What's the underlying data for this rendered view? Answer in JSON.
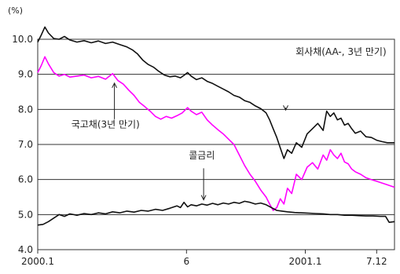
{
  "chart_data": {
    "type": "line",
    "y_unit": "(%)",
    "ylim": [
      4.0,
      10.0
    ],
    "y_ticks": [
      "4.0",
      "5.0",
      "6.0",
      "7.0",
      "8.0",
      "9.0",
      "10.0"
    ],
    "x_tick_labels": [
      "2000.1",
      "6",
      "2001.1",
      "7.12"
    ],
    "x_ticks": [
      0,
      0.417,
      0.75,
      0.95
    ],
    "grid": "horizontal",
    "series": [
      {
        "name": "회사채(AA-, 3년 만기)",
        "color": "#111111",
        "points": [
          [
            0.0,
            9.92
          ],
          [
            0.01,
            10.12
          ],
          [
            0.02,
            10.35
          ],
          [
            0.03,
            10.18
          ],
          [
            0.045,
            10.02
          ],
          [
            0.06,
            10.0
          ],
          [
            0.075,
            10.08
          ],
          [
            0.09,
            9.98
          ],
          [
            0.11,
            9.92
          ],
          [
            0.13,
            9.96
          ],
          [
            0.15,
            9.9
          ],
          [
            0.17,
            9.95
          ],
          [
            0.19,
            9.88
          ],
          [
            0.21,
            9.92
          ],
          [
            0.23,
            9.85
          ],
          [
            0.25,
            9.78
          ],
          [
            0.265,
            9.7
          ],
          [
            0.28,
            9.58
          ],
          [
            0.295,
            9.4
          ],
          [
            0.31,
            9.28
          ],
          [
            0.325,
            9.2
          ],
          [
            0.34,
            9.08
          ],
          [
            0.355,
            8.98
          ],
          [
            0.37,
            8.93
          ],
          [
            0.385,
            8.95
          ],
          [
            0.4,
            8.9
          ],
          [
            0.41,
            8.97
          ],
          [
            0.42,
            9.05
          ],
          [
            0.43,
            8.95
          ],
          [
            0.445,
            8.85
          ],
          [
            0.46,
            8.9
          ],
          [
            0.475,
            8.8
          ],
          [
            0.49,
            8.74
          ],
          [
            0.505,
            8.66
          ],
          [
            0.52,
            8.58
          ],
          [
            0.535,
            8.5
          ],
          [
            0.55,
            8.4
          ],
          [
            0.565,
            8.35
          ],
          [
            0.58,
            8.25
          ],
          [
            0.595,
            8.2
          ],
          [
            0.61,
            8.1
          ],
          [
            0.625,
            8.02
          ],
          [
            0.64,
            7.9
          ],
          [
            0.65,
            7.7
          ],
          [
            0.66,
            7.45
          ],
          [
            0.67,
            7.2
          ],
          [
            0.68,
            6.9
          ],
          [
            0.69,
            6.6
          ],
          [
            0.7,
            6.85
          ],
          [
            0.712,
            6.75
          ],
          [
            0.725,
            7.05
          ],
          [
            0.74,
            6.92
          ],
          [
            0.755,
            7.3
          ],
          [
            0.77,
            7.45
          ],
          [
            0.785,
            7.6
          ],
          [
            0.8,
            7.4
          ],
          [
            0.81,
            7.95
          ],
          [
            0.82,
            7.8
          ],
          [
            0.83,
            7.9
          ],
          [
            0.84,
            7.7
          ],
          [
            0.85,
            7.75
          ],
          [
            0.86,
            7.55
          ],
          [
            0.87,
            7.6
          ],
          [
            0.88,
            7.45
          ],
          [
            0.89,
            7.32
          ],
          [
            0.905,
            7.38
          ],
          [
            0.92,
            7.22
          ],
          [
            0.935,
            7.2
          ],
          [
            0.95,
            7.12
          ],
          [
            0.965,
            7.08
          ],
          [
            0.98,
            7.05
          ],
          [
            1.0,
            7.05
          ]
        ]
      },
      {
        "name": "국고채(3년 만기)",
        "color": "#ff00ff",
        "points": [
          [
            0.0,
            9.05
          ],
          [
            0.01,
            9.25
          ],
          [
            0.02,
            9.5
          ],
          [
            0.03,
            9.3
          ],
          [
            0.045,
            9.05
          ],
          [
            0.06,
            8.95
          ],
          [
            0.075,
            9.0
          ],
          [
            0.09,
            8.92
          ],
          [
            0.11,
            8.95
          ],
          [
            0.13,
            8.98
          ],
          [
            0.15,
            8.9
          ],
          [
            0.17,
            8.94
          ],
          [
            0.19,
            8.86
          ],
          [
            0.21,
            9.02
          ],
          [
            0.225,
            8.82
          ],
          [
            0.24,
            8.72
          ],
          [
            0.255,
            8.55
          ],
          [
            0.27,
            8.4
          ],
          [
            0.285,
            8.2
          ],
          [
            0.3,
            8.08
          ],
          [
            0.315,
            7.95
          ],
          [
            0.33,
            7.8
          ],
          [
            0.345,
            7.72
          ],
          [
            0.36,
            7.8
          ],
          [
            0.375,
            7.75
          ],
          [
            0.39,
            7.82
          ],
          [
            0.405,
            7.9
          ],
          [
            0.42,
            8.05
          ],
          [
            0.43,
            7.95
          ],
          [
            0.445,
            7.85
          ],
          [
            0.46,
            7.92
          ],
          [
            0.475,
            7.7
          ],
          [
            0.49,
            7.55
          ],
          [
            0.505,
            7.42
          ],
          [
            0.52,
            7.3
          ],
          [
            0.535,
            7.15
          ],
          [
            0.55,
            7.0
          ],
          [
            0.565,
            6.7
          ],
          [
            0.58,
            6.4
          ],
          [
            0.595,
            6.15
          ],
          [
            0.61,
            5.95
          ],
          [
            0.625,
            5.7
          ],
          [
            0.64,
            5.5
          ],
          [
            0.65,
            5.3
          ],
          [
            0.66,
            5.12
          ],
          [
            0.67,
            5.2
          ],
          [
            0.68,
            5.45
          ],
          [
            0.69,
            5.3
          ],
          [
            0.7,
            5.75
          ],
          [
            0.712,
            5.6
          ],
          [
            0.725,
            6.15
          ],
          [
            0.74,
            6.0
          ],
          [
            0.755,
            6.35
          ],
          [
            0.77,
            6.48
          ],
          [
            0.785,
            6.3
          ],
          [
            0.8,
            6.7
          ],
          [
            0.81,
            6.55
          ],
          [
            0.82,
            6.85
          ],
          [
            0.83,
            6.7
          ],
          [
            0.84,
            6.6
          ],
          [
            0.85,
            6.75
          ],
          [
            0.86,
            6.5
          ],
          [
            0.87,
            6.45
          ],
          [
            0.88,
            6.3
          ],
          [
            0.89,
            6.22
          ],
          [
            0.905,
            6.15
          ],
          [
            0.92,
            6.05
          ],
          [
            0.935,
            6.0
          ],
          [
            0.95,
            5.95
          ],
          [
            0.965,
            5.9
          ],
          [
            0.98,
            5.85
          ],
          [
            1.0,
            5.78
          ]
        ]
      },
      {
        "name": "콜금리",
        "color": "#111111",
        "points": [
          [
            0.0,
            4.7
          ],
          [
            0.015,
            4.72
          ],
          [
            0.03,
            4.8
          ],
          [
            0.045,
            4.9
          ],
          [
            0.06,
            5.0
          ],
          [
            0.075,
            4.95
          ],
          [
            0.09,
            5.02
          ],
          [
            0.11,
            4.98
          ],
          [
            0.13,
            5.03
          ],
          [
            0.15,
            5.0
          ],
          [
            0.17,
            5.05
          ],
          [
            0.19,
            5.02
          ],
          [
            0.21,
            5.08
          ],
          [
            0.23,
            5.05
          ],
          [
            0.25,
            5.1
          ],
          [
            0.27,
            5.07
          ],
          [
            0.29,
            5.12
          ],
          [
            0.31,
            5.1
          ],
          [
            0.33,
            5.15
          ],
          [
            0.35,
            5.12
          ],
          [
            0.37,
            5.18
          ],
          [
            0.39,
            5.25
          ],
          [
            0.4,
            5.2
          ],
          [
            0.41,
            5.35
          ],
          [
            0.42,
            5.22
          ],
          [
            0.43,
            5.28
          ],
          [
            0.445,
            5.25
          ],
          [
            0.46,
            5.3
          ],
          [
            0.475,
            5.27
          ],
          [
            0.49,
            5.32
          ],
          [
            0.505,
            5.28
          ],
          [
            0.52,
            5.33
          ],
          [
            0.535,
            5.3
          ],
          [
            0.55,
            5.35
          ],
          [
            0.565,
            5.32
          ],
          [
            0.58,
            5.38
          ],
          [
            0.595,
            5.35
          ],
          [
            0.61,
            5.3
          ],
          [
            0.625,
            5.33
          ],
          [
            0.64,
            5.28
          ],
          [
            0.655,
            5.2
          ],
          [
            0.67,
            5.12
          ],
          [
            0.685,
            5.1
          ],
          [
            0.7,
            5.08
          ],
          [
            0.72,
            5.06
          ],
          [
            0.74,
            5.05
          ],
          [
            0.76,
            5.04
          ],
          [
            0.78,
            5.03
          ],
          [
            0.8,
            5.02
          ],
          [
            0.82,
            5.0
          ],
          [
            0.84,
            5.0
          ],
          [
            0.86,
            4.98
          ],
          [
            0.88,
            4.98
          ],
          [
            0.9,
            4.97
          ],
          [
            0.92,
            4.96
          ],
          [
            0.94,
            4.96
          ],
          [
            0.96,
            4.95
          ],
          [
            0.975,
            4.95
          ],
          [
            0.985,
            4.78
          ],
          [
            1.0,
            4.8
          ]
        ]
      }
    ]
  }
}
